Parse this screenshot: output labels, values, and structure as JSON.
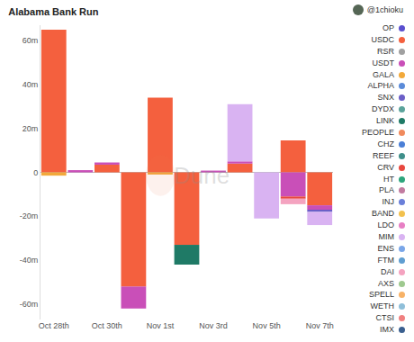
{
  "chart_data": {
    "type": "bar",
    "title": "Alabama Bank Run",
    "annotations": [
      "@1chioku",
      "Dune"
    ],
    "categories": [
      "Oct 28th",
      null,
      "Oct 30th",
      null,
      "Nov 1st",
      null,
      "Nov 3rd",
      null,
      "Nov 5th",
      null,
      "Nov 7th"
    ],
    "stacked": true,
    "grid": false,
    "legend": "right",
    "ylim": [
      -67,
      67
    ],
    "yticks": [
      {
        "value": -60,
        "label": "-60m"
      },
      {
        "value": -40,
        "label": "-40m"
      },
      {
        "value": -20,
        "label": "-20m"
      },
      {
        "value": 0,
        "label": "0"
      },
      {
        "value": 20,
        "label": "20m"
      },
      {
        "value": 40,
        "label": "40m"
      },
      {
        "value": 60,
        "label": "60m"
      }
    ],
    "series": [
      {
        "name": "OP",
        "color": "#5a4fcf",
        "values": [
          0,
          0,
          0,
          0,
          0,
          0,
          0,
          0,
          0,
          0,
          0
        ]
      },
      {
        "name": "USDC",
        "color": "#f4603e",
        "values": [
          65,
          0,
          3.5,
          -52,
          34,
          -33,
          0,
          4,
          0,
          14.5,
          -15
        ]
      },
      {
        "name": "RSR",
        "color": "#a0a0a0",
        "values": [
          0,
          0,
          0,
          0,
          0,
          0,
          0,
          0,
          0,
          0,
          0
        ]
      },
      {
        "name": "USDT",
        "color": "#c94fb8",
        "values": [
          0,
          1,
          1,
          -10,
          0,
          0,
          0.8,
          1,
          0,
          -11,
          -2
        ]
      },
      {
        "name": "GALA",
        "color": "#f2a93b",
        "values": [
          -1.5,
          0,
          0,
          0,
          -1,
          0,
          0,
          0,
          0,
          0,
          0
        ]
      },
      {
        "name": "ALPHA",
        "color": "#5b8bd9",
        "values": [
          0,
          0,
          0,
          0,
          0,
          0,
          0,
          0,
          0,
          0,
          0
        ]
      },
      {
        "name": "SNX",
        "color": "#6b5fc7",
        "values": [
          0,
          0,
          0,
          0,
          0,
          0,
          0,
          0,
          0,
          0,
          -1
        ]
      },
      {
        "name": "DYDX",
        "color": "#5ba39b",
        "values": [
          0,
          0,
          0,
          0,
          0,
          0,
          0,
          0,
          0,
          0,
          0
        ]
      },
      {
        "name": "LINK",
        "color": "#1f7a66",
        "values": [
          0,
          0,
          0,
          0,
          0,
          -9,
          0,
          0,
          0,
          0,
          0
        ]
      },
      {
        "name": "PEOPLE",
        "color": "#f08a5d",
        "values": [
          0,
          0,
          0,
          0,
          0,
          0,
          0,
          0,
          0,
          0,
          0
        ]
      },
      {
        "name": "CHZ",
        "color": "#4b7fd6",
        "values": [
          0,
          0,
          0,
          0,
          0,
          0,
          0,
          0,
          0,
          0,
          0
        ]
      },
      {
        "name": "REEF",
        "color": "#3f8f8a",
        "values": [
          0,
          0,
          0,
          0,
          0,
          0,
          0,
          0,
          0,
          0,
          0
        ]
      },
      {
        "name": "CRV",
        "color": "#e8483f",
        "values": [
          0,
          0,
          0,
          0,
          0,
          0,
          0,
          0,
          0,
          -1,
          0
        ]
      },
      {
        "name": "HT",
        "color": "#2da57c",
        "values": [
          0,
          0,
          0,
          0,
          0,
          0,
          0,
          0,
          0,
          0,
          0
        ]
      },
      {
        "name": "PLA",
        "color": "#c27ba0",
        "values": [
          0,
          0,
          0,
          0,
          0,
          0,
          0,
          0,
          0,
          0,
          0
        ]
      },
      {
        "name": "INJ",
        "color": "#6a7fd9",
        "values": [
          0,
          0,
          0,
          0,
          0,
          0,
          0,
          0,
          0,
          0,
          0
        ]
      },
      {
        "name": "BAND",
        "color": "#f2c14e",
        "values": [
          0,
          0,
          0,
          0,
          0,
          0,
          0,
          0,
          0,
          0,
          0
        ]
      },
      {
        "name": "LDO",
        "color": "#e77fc4",
        "values": [
          0,
          0,
          0,
          0,
          0,
          0,
          0,
          0,
          0,
          0,
          0
        ]
      },
      {
        "name": "MIM",
        "color": "#d9b3f2",
        "values": [
          0,
          0,
          0,
          0,
          0,
          0,
          0,
          26,
          -21,
          0,
          -6
        ]
      },
      {
        "name": "ENS",
        "color": "#7aa6e8",
        "values": [
          0,
          0,
          0,
          0,
          0,
          0,
          0,
          0,
          0,
          0,
          0
        ]
      },
      {
        "name": "FTM",
        "color": "#5f9ed1",
        "values": [
          0,
          0,
          0,
          0,
          0,
          0,
          0,
          0,
          0,
          0,
          0
        ]
      },
      {
        "name": "DAI",
        "color": "#f4a3c0",
        "values": [
          0,
          0,
          0,
          0,
          0,
          0,
          0,
          0,
          0,
          -2.5,
          0
        ]
      },
      {
        "name": "AXS",
        "color": "#9ec98f",
        "values": [
          0,
          0,
          0,
          0,
          0,
          0,
          0,
          0,
          0,
          0,
          0
        ]
      },
      {
        "name": "SPELL",
        "color": "#f7b267",
        "values": [
          0,
          0,
          0,
          0,
          0,
          0,
          0,
          0,
          0,
          0,
          0
        ]
      },
      {
        "name": "WETH",
        "color": "#8fbfd9",
        "values": [
          0,
          0,
          0,
          0,
          0,
          0,
          0,
          0,
          0,
          0,
          0
        ]
      },
      {
        "name": "CTSI",
        "color": "#f08080",
        "values": [
          0,
          0,
          0,
          0,
          0,
          0,
          0,
          0,
          0,
          0,
          0
        ]
      },
      {
        "name": "IMX",
        "color": "#3a5f8f",
        "values": [
          0,
          0,
          0,
          0,
          0,
          0,
          0,
          0,
          0,
          0,
          0
        ]
      }
    ]
  }
}
